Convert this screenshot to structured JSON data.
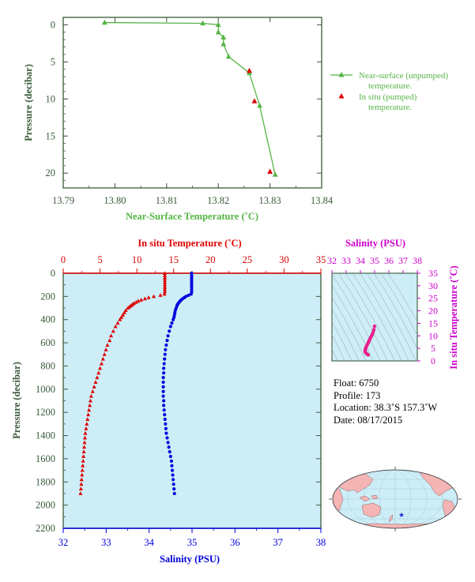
{
  "chart_data": [
    {
      "id": "near-surface",
      "type": "line",
      "xlabel": "Near-Surface Temperature (˚C)",
      "ylabel": "Pressure (decibar)",
      "xlim": [
        13.79,
        13.84
      ],
      "ylim": [
        22,
        -1
      ],
      "xticks": [
        "13.79",
        "13.80",
        "13.81",
        "13.82",
        "13.83",
        "13.84"
      ],
      "yticks": [
        "0",
        "5",
        "10",
        "15",
        "20"
      ],
      "series": [
        {
          "name": "Near-surface (unpumped) temperature.",
          "color": "#55b545",
          "marker": "triangle",
          "x": [
            13.798,
            13.817,
            13.82,
            13.82,
            13.821,
            13.821,
            13.822,
            13.826,
            13.828,
            13.831
          ],
          "y": [
            -0.3,
            -0.2,
            0.0,
            1.0,
            1.7,
            2.6,
            4.3,
            6.5,
            10.9,
            20.2
          ]
        },
        {
          "name": "In situ (pumped) temperature.",
          "color": "#dd0000",
          "marker": "triangle",
          "x": [
            13.826,
            13.827,
            13.83
          ],
          "y": [
            6.2,
            10.3,
            19.8
          ]
        }
      ]
    },
    {
      "id": "profile",
      "type": "scatter",
      "ylabel": "Pressure (decibar)",
      "top_xlabel": "In situ Temperature (˚C)",
      "bottom_xlabel": "Salinity (PSU)",
      "ylim": [
        2200,
        0
      ],
      "temp_lim": [
        0,
        35
      ],
      "sal_lim": [
        32,
        38
      ],
      "yticks": [
        "0",
        "200",
        "400",
        "600",
        "800",
        "1000",
        "1200",
        "1400",
        "1600",
        "1800",
        "2000",
        "2200"
      ],
      "temp_ticks": [
        "0",
        "5",
        "10",
        "15",
        "20",
        "25",
        "30",
        "35"
      ],
      "sal_ticks": [
        "32",
        "33",
        "34",
        "35",
        "36",
        "37",
        "38"
      ],
      "temperature": {
        "color": "#dd0000",
        "pressure": [
          0,
          20,
          40,
          60,
          80,
          100,
          120,
          140,
          160,
          180,
          190,
          200,
          210,
          220,
          230,
          240,
          250,
          260,
          270,
          280,
          290,
          300,
          320,
          340,
          360,
          380,
          400,
          430,
          460,
          500,
          540,
          580,
          620,
          660,
          700,
          740,
          780,
          820,
          860,
          900,
          940,
          980,
          1020,
          1060,
          1100,
          1140,
          1180,
          1220,
          1260,
          1300,
          1340,
          1380,
          1420,
          1460,
          1500,
          1540,
          1580,
          1620,
          1660,
          1700,
          1740,
          1780,
          1820,
          1860,
          1900
        ],
        "values": [
          13.8,
          13.8,
          13.8,
          13.8,
          13.8,
          13.8,
          13.8,
          13.8,
          13.8,
          13.75,
          13.2,
          12.3,
          11.6,
          11.1,
          10.6,
          10.2,
          9.9,
          9.6,
          9.4,
          9.2,
          9.0,
          8.8,
          8.5,
          8.3,
          8.1,
          7.9,
          7.7,
          7.4,
          7.1,
          6.8,
          6.5,
          6.3,
          6.0,
          5.8,
          5.6,
          5.4,
          5.2,
          5.0,
          4.8,
          4.6,
          4.4,
          4.2,
          4.0,
          3.8,
          3.7,
          3.6,
          3.5,
          3.4,
          3.3,
          3.2,
          3.1,
          3.0,
          2.95,
          2.9,
          2.85,
          2.8,
          2.75,
          2.7,
          2.65,
          2.6,
          2.55,
          2.5,
          2.45,
          2.4,
          2.35
        ]
      },
      "salinity": {
        "color": "#0000dd",
        "pressure": [
          0,
          20,
          40,
          60,
          80,
          100,
          120,
          140,
          160,
          180,
          190,
          200,
          210,
          220,
          230,
          240,
          250,
          260,
          270,
          280,
          300,
          320,
          340,
          360,
          380,
          400,
          430,
          460,
          500,
          540,
          580,
          620,
          660,
          700,
          740,
          780,
          820,
          860,
          900,
          940,
          980,
          1020,
          1060,
          1100,
          1140,
          1180,
          1220,
          1260,
          1300,
          1340,
          1380,
          1420,
          1460,
          1500,
          1540,
          1580,
          1620,
          1660,
          1700,
          1740,
          1780,
          1820,
          1860,
          1900
        ],
        "values": [
          34.99,
          34.99,
          34.99,
          34.99,
          34.99,
          34.99,
          34.99,
          34.99,
          34.99,
          34.98,
          34.92,
          34.86,
          34.82,
          34.78,
          34.75,
          34.72,
          34.7,
          34.68,
          34.66,
          34.65,
          34.63,
          34.61,
          34.6,
          34.59,
          34.58,
          34.56,
          34.53,
          34.5,
          34.47,
          34.44,
          34.42,
          34.4,
          34.38,
          34.37,
          34.36,
          34.35,
          34.34,
          34.34,
          34.33,
          34.33,
          34.33,
          34.33,
          34.33,
          34.34,
          34.34,
          34.35,
          34.36,
          34.37,
          34.38,
          34.39,
          34.4,
          34.42,
          34.44,
          34.46,
          34.48,
          34.5,
          34.52,
          34.53,
          34.54,
          34.55,
          34.56,
          34.57,
          34.58,
          34.59
        ]
      }
    },
    {
      "id": "ts-diagram",
      "type": "scatter",
      "top_xlabel": "Salinity (PSU)",
      "ylabel": "In situ Temperature (˚C)",
      "xlim": [
        32,
        38
      ],
      "ylim": [
        0,
        35
      ],
      "xticks": [
        "32",
        "33",
        "34",
        "35",
        "36",
        "37",
        "38"
      ],
      "yticks": [
        "0",
        "5",
        "10",
        "15",
        "20",
        "25",
        "30",
        "35"
      ],
      "color": "#e8208a",
      "salinity": [
        34.99,
        34.95,
        34.9,
        34.85,
        34.8,
        34.75,
        34.7,
        34.66,
        34.62,
        34.58,
        34.55,
        34.5,
        34.46,
        34.42,
        34.39,
        34.36,
        34.34,
        34.33,
        34.34,
        34.36,
        34.4,
        34.45,
        34.5,
        34.55
      ],
      "temperature": [
        13.8,
        12.5,
        11.6,
        10.8,
        10.2,
        9.6,
        9.1,
        8.6,
        8.1,
        7.6,
        7.2,
        6.7,
        6.2,
        5.7,
        5.3,
        4.9,
        4.5,
        4.1,
        3.7,
        3.4,
        3.1,
        2.8,
        2.6,
        2.4
      ]
    }
  ],
  "float_info": {
    "float_label": "Float:",
    "float_value": "6750",
    "profile_label": "Profile:",
    "profile_value": "173",
    "location_label": "Location:",
    "location_value": "38.3˚S  157.3˚W",
    "date_label": "Date:",
    "date_value": "08/17/2015"
  },
  "colors": {
    "axis_green": "#3a5a3a",
    "label_green": "#55b545",
    "temp_red": "#dd0000",
    "sal_blue": "#0000dd",
    "magenta": "#cc00cc",
    "plot_bg": "#cdeef7",
    "land": "#f5b5b5",
    "ocean": "#cdeef7",
    "float_marker": "#1a2fd0"
  }
}
